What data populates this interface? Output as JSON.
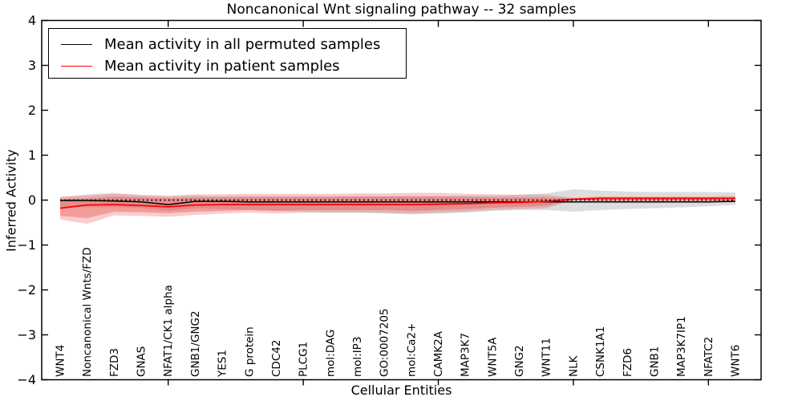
{
  "figure": {
    "title": "Noncanonical Wnt signaling pathway -- 32 samples",
    "xlabel": "Cellular Entities",
    "ylabel": "Inferred Activity"
  },
  "chart_data": {
    "type": "line",
    "title": "Noncanonical Wnt signaling pathway -- 32 samples",
    "xlabel": "Cellular Entities",
    "ylabel": "Inferred Activity",
    "ylim": [
      -4,
      4
    ],
    "yticks": [
      -4,
      -3,
      -2,
      -1,
      0,
      1,
      2,
      3,
      4
    ],
    "grid": false,
    "legend_position": "upper left",
    "categories": [
      "WNT4",
      "Noncanonical Wnts/FZD",
      "FZD3",
      "GNAS",
      "NFAT1/CK1 alpha",
      "GNB1/GNG2",
      "YES1",
      "G protein",
      "CDC42",
      "PLCG1",
      "mol:DAG",
      "mol:IP3",
      "GO:0007205",
      "mol:Ca2+",
      "CAMK2A",
      "MAP3K7",
      "WNT5A",
      "GNG2",
      "WNT11",
      "NLK",
      "CSNK1A1",
      "FZD6",
      "GNB1",
      "MAP3K7IP1",
      "NFATC2",
      "WNT6"
    ],
    "xtick_major_indices": [
      4,
      9,
      14,
      19,
      24
    ],
    "zero_line": {
      "y": 0,
      "style": "dotted",
      "color": "#000000"
    },
    "series": [
      {
        "name": "Mean activity in all permuted samples",
        "color": "#000000",
        "width": 1.5,
        "values": [
          -0.01,
          -0.01,
          -0.02,
          -0.04,
          -0.1,
          -0.03,
          -0.03,
          -0.04,
          -0.04,
          -0.04,
          -0.04,
          -0.04,
          -0.04,
          -0.04,
          -0.04,
          -0.04,
          -0.04,
          -0.04,
          -0.04,
          -0.04,
          -0.04,
          -0.04,
          -0.04,
          -0.04,
          -0.04,
          -0.03
        ]
      },
      {
        "name": "Mean activity in patient samples",
        "color": "#ff0000",
        "width": 1.8,
        "values": [
          -0.18,
          -0.11,
          -0.1,
          -0.12,
          -0.15,
          -0.11,
          -0.1,
          -0.1,
          -0.1,
          -0.1,
          -0.1,
          -0.1,
          -0.1,
          -0.1,
          -0.09,
          -0.08,
          -0.06,
          -0.05,
          -0.03,
          0.02,
          0.04,
          0.04,
          0.04,
          0.04,
          0.04,
          0.04
        ]
      }
    ],
    "bands": [
      {
        "name": "permuted-activity-range",
        "color": "#9e9e9e",
        "opacity": 0.35,
        "upper": [
          0.06,
          0.13,
          0.16,
          0.1,
          0.08,
          0.1,
          0.09,
          0.09,
          0.09,
          0.09,
          0.09,
          0.09,
          0.09,
          0.09,
          0.09,
          0.1,
          0.1,
          0.12,
          0.15,
          0.24,
          0.21,
          0.19,
          0.18,
          0.18,
          0.18,
          0.17
        ],
        "lower": [
          -0.14,
          -0.16,
          -0.16,
          -0.18,
          -0.24,
          -0.18,
          -0.2,
          -0.22,
          -0.24,
          -0.26,
          -0.28,
          -0.28,
          -0.3,
          -0.32,
          -0.3,
          -0.28,
          -0.24,
          -0.22,
          -0.22,
          -0.26,
          -0.22,
          -0.2,
          -0.18,
          -0.16,
          -0.14,
          -0.11
        ]
      },
      {
        "name": "patient-activity-range-outer",
        "color": "#e84c4c",
        "opacity": 0.28,
        "upper": [
          0.08,
          0.1,
          0.14,
          0.12,
          0.1,
          0.13,
          0.13,
          0.14,
          0.14,
          0.14,
          0.14,
          0.15,
          0.15,
          0.16,
          0.16,
          0.14,
          0.13,
          0.12,
          0.12,
          0.05,
          0.08,
          0.08,
          0.08,
          0.08,
          0.08,
          0.09
        ],
        "lower": [
          -0.43,
          -0.53,
          -0.34,
          -0.35,
          -0.37,
          -0.33,
          -0.3,
          -0.28,
          -0.3,
          -0.28,
          -0.28,
          -0.28,
          -0.28,
          -0.3,
          -0.28,
          -0.26,
          -0.22,
          -0.2,
          -0.18,
          -0.01,
          -0.02,
          -0.02,
          -0.02,
          -0.02,
          -0.02,
          -0.02
        ]
      },
      {
        "name": "patient-activity-range-inner",
        "color": "#e84c4c",
        "opacity": 0.38,
        "upper": [
          0.02,
          0.04,
          0.08,
          0.06,
          0.04,
          0.06,
          0.06,
          0.07,
          0.07,
          0.07,
          0.07,
          0.08,
          0.08,
          0.08,
          0.08,
          0.07,
          0.06,
          0.06,
          0.06,
          0.04,
          0.06,
          0.06,
          0.06,
          0.06,
          0.06,
          0.07
        ],
        "lower": [
          -0.35,
          -0.4,
          -0.26,
          -0.27,
          -0.29,
          -0.26,
          -0.24,
          -0.22,
          -0.24,
          -0.22,
          -0.22,
          -0.22,
          -0.22,
          -0.24,
          -0.22,
          -0.2,
          -0.17,
          -0.15,
          -0.13,
          0.0,
          -0.01,
          -0.01,
          -0.01,
          -0.01,
          -0.01,
          -0.01
        ]
      }
    ]
  }
}
